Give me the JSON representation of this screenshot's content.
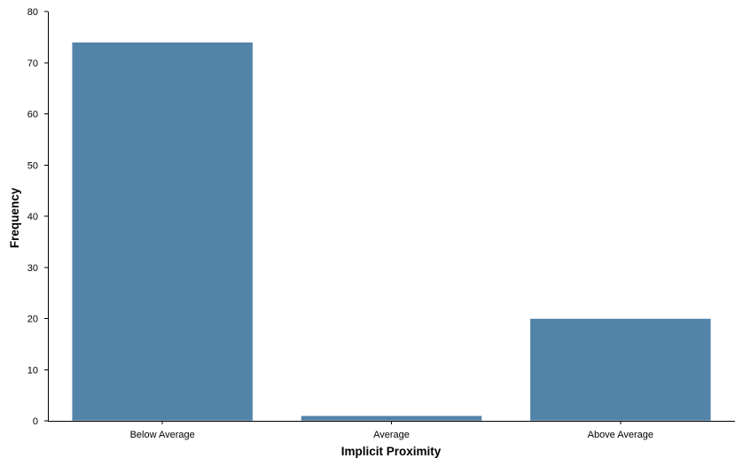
{
  "chart_data": {
    "type": "bar",
    "categories": [
      "Below Average",
      "Average",
      "Above Average"
    ],
    "values": [
      74,
      1,
      20
    ],
    "title": "",
    "xlabel": "Implicit Proximity",
    "ylabel": "Frequency",
    "ylim": [
      0,
      80
    ],
    "yticks": [
      0,
      10,
      20,
      30,
      40,
      50,
      60,
      70,
      80
    ],
    "grid": false,
    "legend": "none",
    "bar_color": "#5283A8"
  }
}
